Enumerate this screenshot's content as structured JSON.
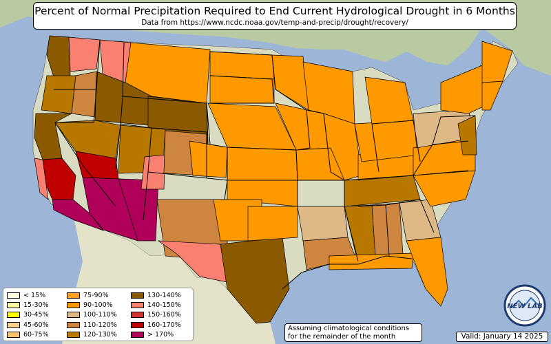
{
  "title": "Percent of Normal Precipitation Required to End Current Hydrological Drought in 6 Months",
  "subtitle": "Data from https://www.ncdc.noaa.gov/temp-and-precip/drought/recovery/",
  "note_line1": "Assuming climatological conditions",
  "note_line2": "for the remainder of the month",
  "valid": "Valid: January 14 2025",
  "logo_text": "NEW LAB",
  "colors": {
    "ocean": "#9db6d8",
    "land_plain": "#d9dcc0",
    "land_green": "#aec79a"
  },
  "legend": [
    {
      "label": "< 15%",
      "color": "#ffffe0"
    },
    {
      "label": "15-30%",
      "color": "#fffaa0"
    },
    {
      "label": "30-45%",
      "color": "#ffff00"
    },
    {
      "label": "45-60%",
      "color": "#f9d38f"
    },
    {
      "label": "60-75%",
      "color": "#ffc36b"
    },
    {
      "label": "75-90%",
      "color": "#ffa020"
    },
    {
      "label": "90-100%",
      "color": "#ff9900"
    },
    {
      "label": "100-110%",
      "color": "#deb887"
    },
    {
      "label": "110-120%",
      "color": "#cd853f"
    },
    {
      "label": "120-130%",
      "color": "#b87800"
    },
    {
      "label": "130-140%",
      "color": "#8b5a00"
    },
    {
      "label": "140-150%",
      "color": "#fa8072"
    },
    {
      "label": "150-160%",
      "color": "#d03030"
    },
    {
      "label": "160-170%",
      "color": "#c00000"
    },
    {
      "label": "> 170%",
      "color": "#b0005a"
    }
  ],
  "regions": [
    {
      "name": "wa-west",
      "legend": "130-140%"
    },
    {
      "name": "wa-east",
      "legend": "140-150%"
    },
    {
      "name": "or-west",
      "legend": "120-130%"
    },
    {
      "name": "or-east",
      "legend": "110-120%"
    },
    {
      "name": "id-north",
      "legend": "140-150%"
    },
    {
      "name": "mt",
      "legend": "90-100%"
    },
    {
      "name": "id-south",
      "legend": "130-140%"
    },
    {
      "name": "wy",
      "legend": "130-140%"
    },
    {
      "name": "nv-north",
      "legend": "120-130%"
    },
    {
      "name": "ca-north",
      "legend": "130-140%"
    },
    {
      "name": "ca-central",
      "legend": "160-170%"
    },
    {
      "name": "ca-coast",
      "legend": "140-150%"
    },
    {
      "name": "ca-south",
      "legend": "> 170%"
    },
    {
      "name": "nv-south",
      "legend": "160-170%"
    },
    {
      "name": "az",
      "legend": "> 170%"
    },
    {
      "name": "nm-west",
      "legend": "> 170%"
    },
    {
      "name": "ut",
      "legend": "120-130%"
    },
    {
      "name": "ut-se",
      "legend": "140-150%"
    },
    {
      "name": "co-west",
      "legend": "110-120%"
    },
    {
      "name": "co-east",
      "legend": "90-100%"
    },
    {
      "name": "nd",
      "legend": "90-100%"
    },
    {
      "name": "sd",
      "legend": "90-100%"
    },
    {
      "name": "ne",
      "legend": "90-100%"
    },
    {
      "name": "ks",
      "legend": "90-100%"
    },
    {
      "name": "ok-west",
      "legend": "90-100%"
    },
    {
      "name": "tx-panhandle",
      "legend": "110-120%"
    },
    {
      "name": "nm-east",
      "legend": "90-100%"
    },
    {
      "name": "tx-west",
      "legend": "140-150%"
    },
    {
      "name": "tx-central",
      "legend": "130-140%"
    },
    {
      "name": "tx-north",
      "legend": "90-100%"
    },
    {
      "name": "mn-west",
      "legend": "90-100%"
    },
    {
      "name": "wi",
      "legend": "90-100%"
    },
    {
      "name": "ia",
      "legend": "90-100%"
    },
    {
      "name": "il",
      "legend": "90-100%"
    },
    {
      "name": "mo",
      "legend": "90-100%"
    },
    {
      "name": "ar",
      "legend": "100-110%"
    },
    {
      "name": "la",
      "legend": "110-120%"
    },
    {
      "name": "ms",
      "legend": "120-130%"
    },
    {
      "name": "al",
      "legend": "110-120%"
    },
    {
      "name": "tn",
      "legend": "120-130%"
    },
    {
      "name": "ky",
      "legend": "90-100%"
    },
    {
      "name": "in-oh",
      "legend": "90-100%"
    },
    {
      "name": "mi",
      "legend": "90-100%"
    },
    {
      "name": "ga",
      "legend": "100-110%"
    },
    {
      "name": "sc-nc",
      "legend": "90-100%"
    },
    {
      "name": "va",
      "legend": "90-100%"
    },
    {
      "name": "wv-pa",
      "legend": "100-110%"
    },
    {
      "name": "nj-md",
      "legend": "120-130%"
    },
    {
      "name": "ny",
      "legend": "90-100%"
    },
    {
      "name": "ne-coast",
      "legend": "90-100%"
    },
    {
      "name": "me",
      "legend": "90-100%"
    },
    {
      "name": "gulf-coast",
      "legend": "90-100%"
    },
    {
      "name": "fl",
      "legend": "90-100%"
    }
  ]
}
